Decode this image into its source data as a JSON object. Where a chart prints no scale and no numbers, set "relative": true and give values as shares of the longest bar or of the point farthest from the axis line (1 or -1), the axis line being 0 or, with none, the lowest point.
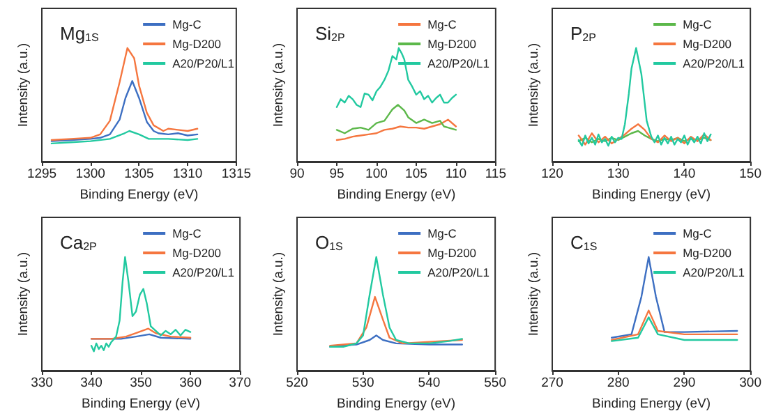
{
  "chart_data": [
    {
      "type": "line",
      "title": "Mg$_{1S}$",
      "xlabel": "Binding Energy (eV)",
      "ylabel": "Intensity (a.u.)",
      "relative": true,
      "xlim": [
        1295,
        1315
      ],
      "xticks": [
        1295,
        1300,
        1305,
        1310,
        1315
      ],
      "tick_labels": "x",
      "grid": false,
      "legend": "top right",
      "marker": "none",
      "line_style": "solid",
      "series": [
        {
          "name": "Mg-C",
          "color": "#3d6fc2",
          "x": [
            1296,
            1298,
            1300,
            1301,
            1302,
            1303,
            1303.6,
            1304.3,
            1305,
            1305.8,
            1306.5,
            1307,
            1308,
            1309,
            1310,
            1311
          ],
          "values": [
            0.18,
            0.19,
            0.2,
            0.21,
            0.24,
            0.37,
            0.56,
            0.71,
            0.56,
            0.35,
            0.27,
            0.25,
            0.24,
            0.25,
            0.23,
            0.24
          ]
        },
        {
          "name": "Mg-D200",
          "color": "#f5763f",
          "x": [
            1296,
            1298,
            1300,
            1301,
            1302,
            1303,
            1303.8,
            1304.5,
            1305,
            1305.8,
            1306.5,
            1307.5,
            1308,
            1309,
            1310,
            1311
          ],
          "values": [
            0.19,
            0.2,
            0.21,
            0.24,
            0.36,
            0.7,
            1,
            0.91,
            0.67,
            0.43,
            0.32,
            0.27,
            0.29,
            0.28,
            0.27,
            0.29
          ]
        },
        {
          "name": "A20/P20/L1",
          "color": "#22c9a0",
          "x": [
            1296,
            1298,
            1300,
            1302,
            1303.5,
            1304,
            1305,
            1306,
            1308,
            1310,
            1311
          ],
          "values": [
            0.16,
            0.17,
            0.18,
            0.2,
            0.25,
            0.27,
            0.24,
            0.2,
            0.2,
            0.19,
            0.2
          ]
        }
      ]
    },
    {
      "type": "line",
      "title": "Si$_{2P}$",
      "xlabel": "Binding Energy (eV)",
      "ylabel": "Intensity (a.u.)",
      "relative": true,
      "xlim": [
        90,
        115
      ],
      "xticks": [
        90,
        95,
        100,
        105,
        110,
        115
      ],
      "tick_labels": "x",
      "grid": false,
      "legend": "top right",
      "marker": "none",
      "line_style": "solid",
      "series": [
        {
          "name": "Mg-C",
          "color": "#f5763f",
          "x": [
            95,
            96,
            97,
            98,
            99,
            100,
            101,
            102,
            103,
            104,
            105,
            106,
            107,
            108,
            109,
            110
          ],
          "values": [
            0.19,
            0.2,
            0.22,
            0.23,
            0.24,
            0.25,
            0.28,
            0.29,
            0.31,
            0.3,
            0.3,
            0.29,
            0.31,
            0.33,
            0.37,
            0.31
          ]
        },
        {
          "name": "Mg-D200",
          "color": "#5cb84a",
          "x": [
            95,
            96,
            97,
            98,
            99,
            100,
            101,
            101.5,
            102,
            102.7,
            103.5,
            104,
            105,
            106,
            107,
            108,
            108.5,
            109,
            110
          ],
          "values": [
            0.28,
            0.25,
            0.29,
            0.3,
            0.28,
            0.34,
            0.36,
            0.41,
            0.46,
            0.5,
            0.45,
            0.39,
            0.34,
            0.37,
            0.34,
            0.36,
            0.31,
            0.3,
            0.28
          ]
        },
        {
          "name": "A20/P20/L1",
          "color": "#22c9a0",
          "x": [
            95,
            95.5,
            96,
            96.5,
            97,
            97.5,
            98,
            98.5,
            99,
            99.5,
            100,
            100.5,
            101,
            101.5,
            102,
            102.5,
            102.8,
            103.2,
            103.5,
            104,
            104.5,
            105,
            105.5,
            106,
            106.5,
            107,
            107.5,
            108,
            108.5,
            109,
            109.5,
            110
          ],
          "values": [
            0.48,
            0.55,
            0.52,
            0.58,
            0.55,
            0.5,
            0.48,
            0.6,
            0.59,
            0.54,
            0.62,
            0.66,
            0.72,
            0.8,
            0.93,
            0.9,
            1,
            0.95,
            0.9,
            0.72,
            0.66,
            0.59,
            0.62,
            0.55,
            0.58,
            0.52,
            0.56,
            0.59,
            0.52,
            0.52,
            0.56,
            0.59
          ]
        }
      ]
    },
    {
      "type": "line",
      "title": "P$_{2P}$",
      "xlabel": "Binding Energy (eV)",
      "ylabel": "Intensity (a.u.)",
      "relative": true,
      "xlim": [
        120,
        150
      ],
      "xticks": [
        120,
        130,
        140,
        150
      ],
      "tick_labels": "x",
      "grid": false,
      "legend": "top right",
      "marker": "none",
      "line_style": "solid",
      "series": [
        {
          "name": "Mg-C",
          "color": "#5cb84a",
          "x": [
            124,
            125,
            126,
            127,
            128,
            129,
            130,
            131,
            132,
            133,
            134,
            135,
            136,
            137,
            138,
            139,
            140,
            141,
            142,
            143,
            144
          ],
          "values": [
            0.18,
            0.21,
            0.17,
            0.2,
            0.18,
            0.21,
            0.19,
            0.22,
            0.25,
            0.27,
            0.23,
            0.2,
            0.18,
            0.2,
            0.19,
            0.21,
            0.18,
            0.2,
            0.19,
            0.21,
            0.19
          ]
        },
        {
          "name": "Mg-D200",
          "color": "#f5763f",
          "x": [
            124,
            125,
            126,
            127,
            128,
            129,
            130,
            131,
            132,
            133,
            134,
            135,
            136,
            137,
            138,
            139,
            140,
            141,
            142,
            143,
            144
          ],
          "values": [
            0.23,
            0.15,
            0.25,
            0.17,
            0.22,
            0.16,
            0.2,
            0.24,
            0.29,
            0.33,
            0.28,
            0.2,
            0.17,
            0.23,
            0.18,
            0.21,
            0.16,
            0.22,
            0.18,
            0.24,
            0.19
          ]
        },
        {
          "name": "A20/P20/L1",
          "color": "#22c9a0",
          "x": [
            124,
            124.5,
            125,
            125.5,
            126,
            126.5,
            127,
            127.5,
            128,
            128.5,
            129,
            129.5,
            130,
            130.5,
            131,
            131.6,
            132,
            132.7,
            133.5,
            134.3,
            135,
            135.5,
            136,
            136.5,
            137,
            137.5,
            138,
            138.5,
            139,
            139.5,
            140,
            140.5,
            141,
            141.5,
            142,
            142.5,
            143,
            143.5,
            144
          ],
          "values": [
            0.19,
            0.14,
            0.23,
            0.16,
            0.21,
            0.15,
            0.24,
            0.17,
            0.2,
            0.14,
            0.22,
            0.17,
            0.21,
            0.2,
            0.33,
            0.6,
            0.82,
            1,
            0.77,
            0.36,
            0.22,
            0.17,
            0.23,
            0.15,
            0.21,
            0.16,
            0.22,
            0.15,
            0.2,
            0.17,
            0.23,
            0.15,
            0.21,
            0.17,
            0.22,
            0.16,
            0.25,
            0.18,
            0.24
          ]
        }
      ]
    },
    {
      "type": "line",
      "title": "Ca$_{2P}$",
      "xlabel": "Binding Energy (eV)",
      "ylabel": "Intensity (a.u.)",
      "relative": true,
      "xlim": [
        330,
        370
      ],
      "xticks": [
        330,
        340,
        350,
        360,
        370
      ],
      "tick_labels": "x",
      "grid": false,
      "legend": "top right",
      "marker": "none",
      "line_style": "solid",
      "series": [
        {
          "name": "Mg-C",
          "color": "#3d6fc2",
          "x": [
            340,
            346,
            349,
            351.7,
            354,
            360
          ],
          "values": [
            0.28,
            0.28,
            0.3,
            0.32,
            0.29,
            0.28
          ]
        },
        {
          "name": "Mg-D200",
          "color": "#f5763f",
          "x": [
            340,
            344,
            347,
            349,
            351.5,
            353,
            356,
            360
          ],
          "values": [
            0.28,
            0.28,
            0.3,
            0.33,
            0.37,
            0.33,
            0.3,
            0.29
          ]
        },
        {
          "name": "A20/P20/L1",
          "color": "#22c9a0",
          "x": [
            340,
            340.5,
            341,
            341.5,
            342,
            342.5,
            343,
            343.5,
            344,
            345,
            345.7,
            346.3,
            346.8,
            347.5,
            348.3,
            349,
            349.8,
            350.5,
            351.2,
            352,
            353,
            354,
            355,
            356,
            357,
            358,
            359,
            360
          ],
          "values": [
            0.22,
            0.17,
            0.24,
            0.19,
            0.22,
            0.18,
            0.24,
            0.21,
            0.25,
            0.3,
            0.44,
            0.78,
            1,
            0.78,
            0.48,
            0.52,
            0.67,
            0.72,
            0.59,
            0.39,
            0.35,
            0.31,
            0.35,
            0.32,
            0.36,
            0.31,
            0.36,
            0.34
          ]
        }
      ]
    },
    {
      "type": "line",
      "title": "O$_{1S}$",
      "xlabel": "Binding Energy (eV)",
      "ylabel": "Intensity (a.u.)",
      "relative": true,
      "xlim": [
        520,
        550
      ],
      "xticks": [
        520,
        530,
        540,
        550
      ],
      "tick_labels": "x",
      "grid": false,
      "legend": "top right",
      "marker": "none",
      "line_style": "solid",
      "series": [
        {
          "name": "Mg-C",
          "color": "#3d6fc2",
          "x": [
            525,
            529,
            531,
            532,
            533,
            535,
            540,
            545
          ],
          "values": [
            0.21,
            0.23,
            0.27,
            0.31,
            0.27,
            0.24,
            0.23,
            0.23
          ]
        },
        {
          "name": "Mg-D200",
          "color": "#f5763f",
          "x": [
            525,
            529,
            530.5,
            531.8,
            533,
            534,
            536,
            545
          ],
          "values": [
            0.22,
            0.24,
            0.38,
            0.65,
            0.45,
            0.29,
            0.24,
            0.27
          ]
        },
        {
          "name": "A20/P20/L1",
          "color": "#22c9a0",
          "x": [
            525,
            527,
            529,
            530,
            531,
            532,
            533,
            534,
            535,
            537,
            540,
            543,
            545
          ],
          "values": [
            0.21,
            0.21,
            0.24,
            0.31,
            0.67,
            1,
            0.67,
            0.38,
            0.27,
            0.24,
            0.24,
            0.26,
            0.28
          ]
        }
      ]
    },
    {
      "type": "line",
      "title": "C$_{1S}$",
      "xlabel": "Binding Energy (eV)",
      "ylabel": "Intensity (a.u.)",
      "relative": true,
      "xlim": [
        270,
        300
      ],
      "xticks": [
        270,
        280,
        290,
        300
      ],
      "tick_labels": "x",
      "grid": false,
      "legend": "top right",
      "marker": "none",
      "line_style": "solid",
      "series": [
        {
          "name": "Mg-C",
          "color": "#3d6fc2",
          "x": [
            279,
            282,
            283.5,
            284.6,
            285.7,
            287,
            290,
            298
          ],
          "values": [
            0.29,
            0.32,
            0.65,
            1,
            0.65,
            0.34,
            0.34,
            0.35
          ]
        },
        {
          "name": "Mg-D200",
          "color": "#f5763f",
          "x": [
            279,
            283,
            284.6,
            286,
            290,
            298
          ],
          "values": [
            0.27,
            0.32,
            0.53,
            0.35,
            0.32,
            0.32
          ]
        },
        {
          "name": "A20/P20/L1",
          "color": "#22c9a0",
          "x": [
            279,
            283,
            284.6,
            286,
            290,
            298
          ],
          "values": [
            0.26,
            0.29,
            0.47,
            0.32,
            0.27,
            0.27
          ]
        }
      ]
    }
  ]
}
